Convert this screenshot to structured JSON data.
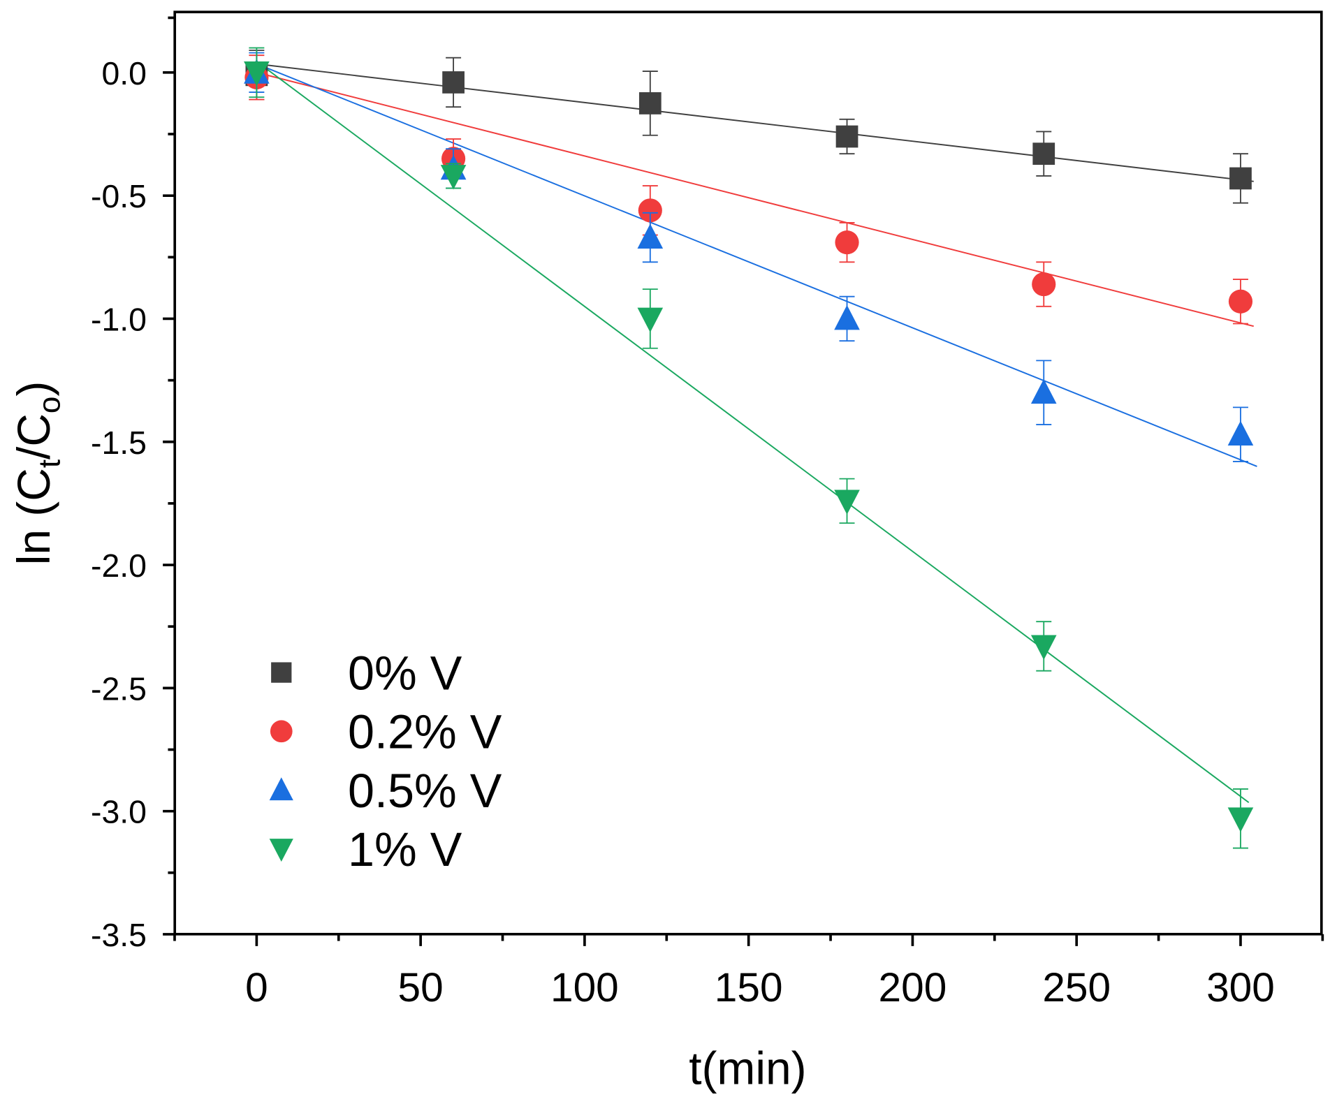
{
  "chart_data": {
    "type": "scatter",
    "title": "",
    "xlabel": "t(min)",
    "ylabel_main": "ln (C",
    "ylabel_sub1": "t",
    "ylabel_mid": "/C",
    "ylabel_sub2": "o",
    "ylabel_end": ")",
    "xlim": [
      -25,
      325
    ],
    "ylim": [
      -3.5,
      0.25
    ],
    "xticks": [
      0,
      50,
      100,
      150,
      200,
      250,
      300
    ],
    "xtick_labels": [
      "0",
      "50",
      "100",
      "150",
      "200",
      "250",
      "300"
    ],
    "yticks": [
      0,
      -0.5,
      -1,
      -1.5,
      -2,
      -2.5,
      -3,
      -3.5
    ],
    "ytick_labels": [
      "0.0",
      "-0.5",
      "-1.0",
      "-1.5",
      "-2.0",
      "-2.5",
      "-3.0",
      "-3.5"
    ],
    "legend_position": "bottom-left",
    "x": [
      0,
      60,
      120,
      180,
      240,
      300
    ],
    "series": [
      {
        "name": "0% V",
        "color": "#404040",
        "marker": "square",
        "values": [
          -0.01,
          -0.04,
          -0.125,
          -0.26,
          -0.33,
          -0.43
        ],
        "errors": [
          0.1,
          0.1,
          0.13,
          0.07,
          0.09,
          0.1
        ],
        "fit": {
          "intercept": 0.035,
          "slope": -0.00157,
          "x_end": 304
        }
      },
      {
        "name": "0.2% V",
        "color": "#f03c3c",
        "marker": "circle",
        "values": [
          -0.02,
          -0.35,
          -0.56,
          -0.69,
          -0.86,
          -0.93
        ],
        "errors": [
          0.09,
          0.08,
          0.1,
          0.08,
          0.09,
          0.09
        ],
        "fit": {
          "intercept": 0.0,
          "slope": -0.00339,
          "x_end": 304
        }
      },
      {
        "name": "0.5% V",
        "color": "#1a6fe0",
        "marker": "triangle-up",
        "values": [
          0.0,
          -0.39,
          -0.67,
          -1.0,
          -1.3,
          -1.47
        ],
        "errors": [
          0.08,
          0.08,
          0.1,
          0.09,
          0.13,
          0.11
        ],
        "fit": {
          "intercept": 0.035,
          "slope": -0.00536,
          "x_end": 305
        }
      },
      {
        "name": "1% V",
        "color": "#1aa860",
        "marker": "triangle-down",
        "values": [
          0.0,
          -0.42,
          -1.0,
          -1.74,
          -2.33,
          -3.03
        ],
        "errors": [
          0.1,
          0.05,
          0.12,
          0.09,
          0.1,
          0.12
        ],
        "fit": {
          "intercept": 0.045,
          "slope": -0.00995,
          "x_end": 302.5
        }
      }
    ]
  }
}
